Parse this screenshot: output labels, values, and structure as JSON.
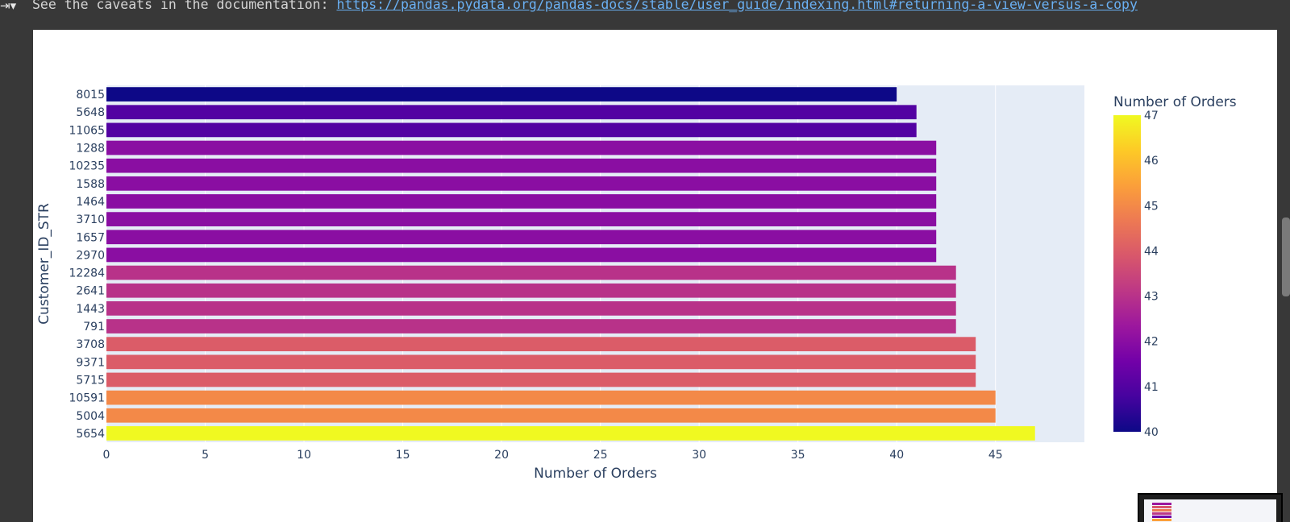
{
  "output": {
    "toggle_icon": "output-toggle-icon",
    "warning_prefix": "See the caveats in the documentation: ",
    "warning_link": "https://pandas.pydata.org/pandas-docs/stable/user_guide/indexing.html#returning-a-view-versus-a-copy"
  },
  "chart_data": {
    "type": "bar",
    "orientation": "horizontal",
    "title": "",
    "xlabel": "Number of Orders",
    "ylabel": "Customer_ID_STR",
    "xlim": [
      0,
      49.5
    ],
    "xticks": [
      0,
      5,
      10,
      15,
      20,
      25,
      30,
      35,
      40,
      45
    ],
    "grid": true,
    "plot_background": "#e5ecf6",
    "categories": [
      "8015",
      "5648",
      "11065",
      "1288",
      "10235",
      "1588",
      "1464",
      "3710",
      "1657",
      "2970",
      "12284",
      "2641",
      "1443",
      "791",
      "3708",
      "9371",
      "5715",
      "10591",
      "5004",
      "5654"
    ],
    "values": [
      40,
      41,
      41,
      42,
      42,
      42,
      42,
      42,
      42,
      42,
      43,
      43,
      43,
      43,
      44,
      44,
      44,
      45,
      45,
      47
    ],
    "colorbar": {
      "title": "Number of Orders",
      "min": 40,
      "max": 47,
      "ticks": [
        40,
        41,
        42,
        43,
        44,
        45,
        46,
        47
      ],
      "colorscale": "plasma",
      "colors": [
        "#0d0887",
        "#46039f",
        "#7201a8",
        "#9c179e",
        "#bd3786",
        "#d8576b",
        "#ed7953",
        "#fb9f3a",
        "#fdca26",
        "#f0f921"
      ]
    }
  }
}
